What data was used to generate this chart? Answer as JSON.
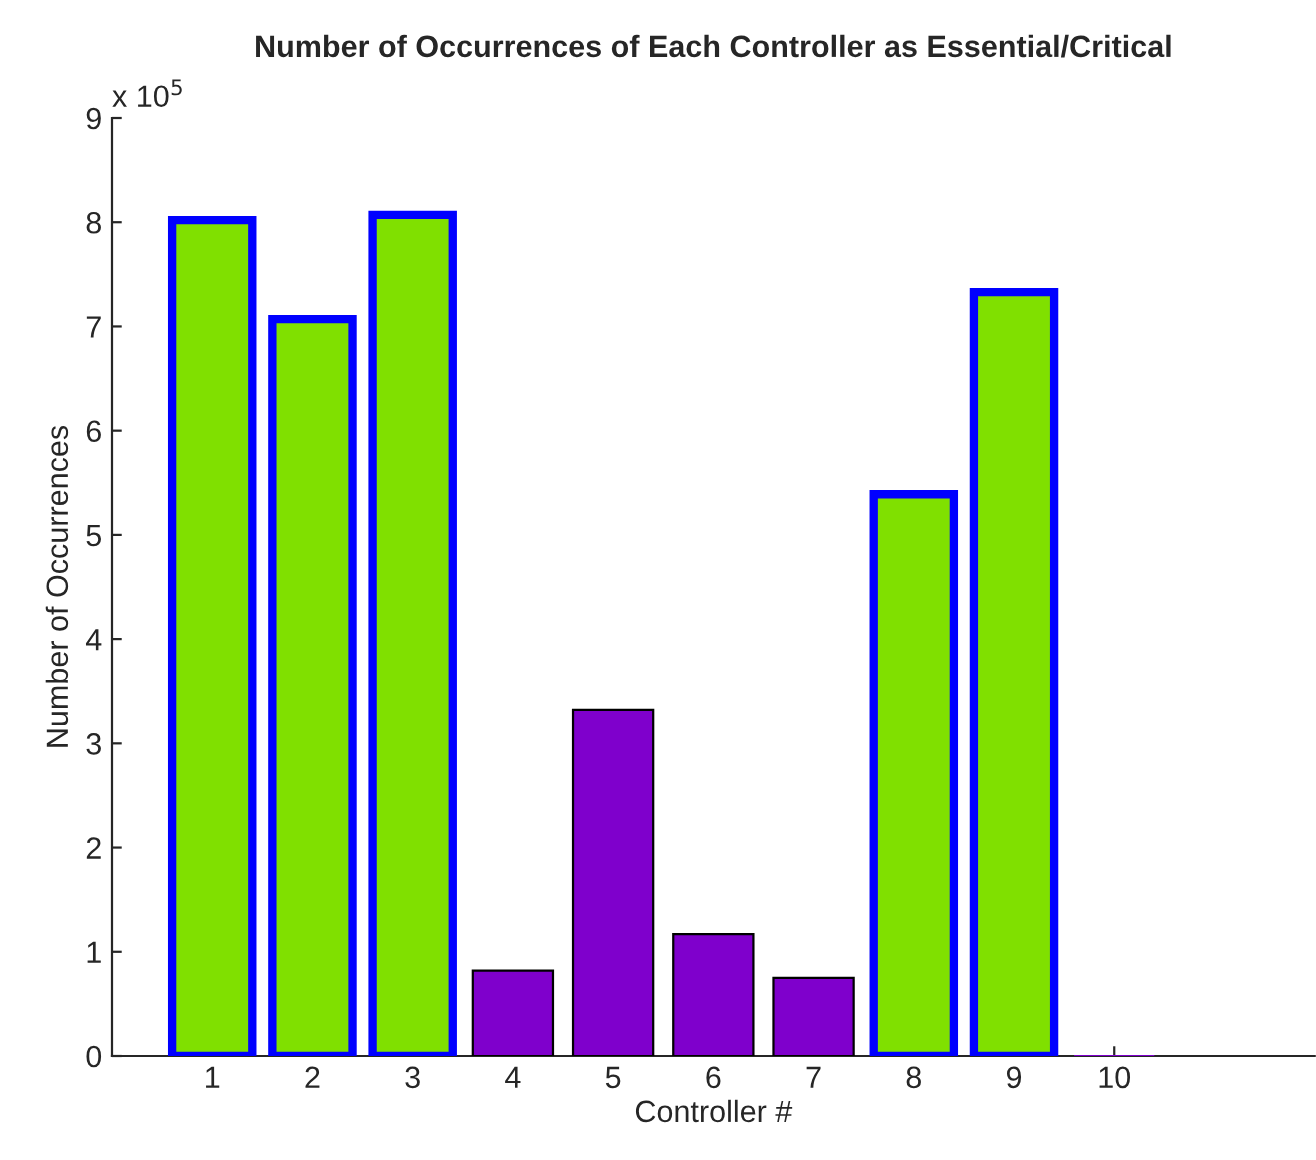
{
  "chart_data": {
    "type": "bar",
    "title": "Number of Occurrences of Each Controller as Essential/Critical",
    "xlabel": "Controller #",
    "ylabel": "Number of Occurrences",
    "annotations": [
      "x 10$^{5}$"
    ],
    "x": [
      1,
      2,
      3,
      4,
      5,
      6,
      7,
      8,
      9,
      10
    ],
    "series": [
      {
        "color": "#80e000",
        "values": [
          8.02,
          7.07,
          8.07,
          null,
          null,
          null,
          null,
          5.39,
          7.33,
          null
        ]
      },
      {
        "color": "#7f00cc",
        "values": [
          null,
          null,
          null,
          0.82,
          3.32,
          1.17,
          0.75,
          null,
          null,
          0
        ]
      }
    ],
    "xlim": [
      0,
      12
    ],
    "xticks": [
      1,
      2,
      3,
      4,
      5,
      6,
      7,
      8,
      9,
      10
    ],
    "ylim": [
      0,
      9
    ],
    "yticks": [
      0,
      1,
      2,
      3,
      4,
      5,
      6,
      7,
      8,
      9
    ],
    "grid": false,
    "legend": false
  }
}
